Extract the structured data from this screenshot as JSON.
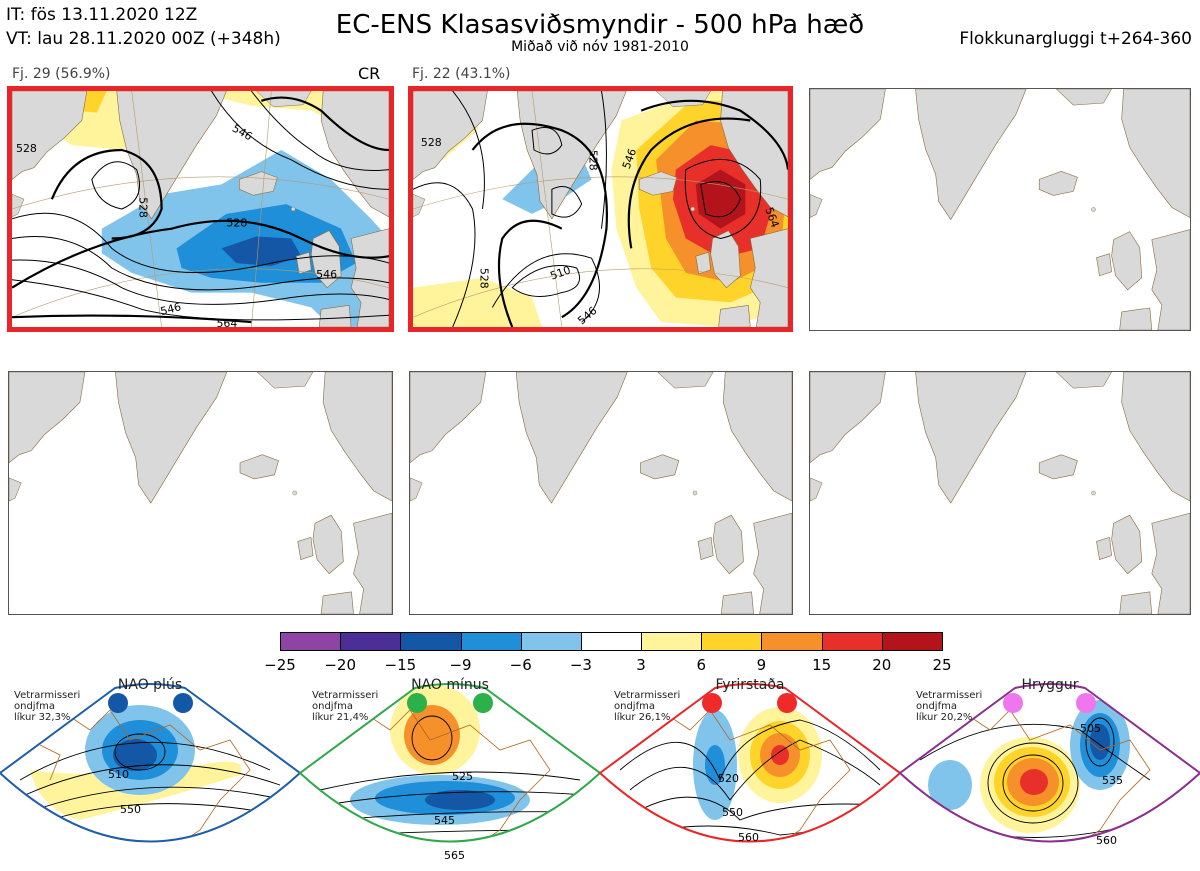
{
  "header": {
    "it_line": "IT: fös 13.11.2020 12Z",
    "vt_line": "VT: lau 28.11.2020 00Z  (+348h)",
    "title": "EC-ENS Klasasviðsmyndir - 500 hPa hæð",
    "subtitle": "Miðað við nóv 1981-2010",
    "window": "Flokkunargluggi t+264-360"
  },
  "panels": [
    {
      "label": "Fj. 29 (56.9%)",
      "tag": "CR",
      "highlighted": true,
      "contours": [
        {
          "text": "528"
        },
        {
          "text": "528"
        },
        {
          "text": "528"
        },
        {
          "text": "546"
        },
        {
          "text": "546"
        },
        {
          "text": "546"
        },
        {
          "text": "564"
        }
      ]
    },
    {
      "label": "Fj. 22 (43.1%)",
      "tag": "",
      "highlighted": true,
      "contours": [
        {
          "text": "528"
        },
        {
          "text": "528"
        },
        {
          "text": "528"
        },
        {
          "text": "510"
        },
        {
          "text": "546"
        },
        {
          "text": "564"
        },
        {
          "text": "546"
        }
      ]
    },
    {
      "label": "",
      "highlighted": false
    },
    {
      "label": "",
      "highlighted": false
    },
    {
      "label": "",
      "highlighted": false
    },
    {
      "label": "",
      "highlighted": false
    }
  ],
  "colorbar": {
    "ticks": [
      "−25",
      "−20",
      "−15",
      "−9",
      "−6",
      "−3",
      "3",
      "6",
      "9",
      "15",
      "20",
      "25"
    ],
    "colors": [
      "#8e44a5",
      "#4b2e96",
      "#1457a6",
      "#1e8fd8",
      "#80c4ec",
      "#ffffff",
      "#fff39b",
      "#ffd42a",
      "#f5902a",
      "#e8302a",
      "#b3141c"
    ]
  },
  "regimes": [
    {
      "name": "NAO plús",
      "caption": "Vetrarmisseri\nondjfma\nlíkur 32,3%",
      "color": "#1e5ea8",
      "dot_color": "#1457a6",
      "contours": [
        "510",
        "550"
      ]
    },
    {
      "name": "NAO mínus",
      "caption": "Vetrarmisseri\nondjfma\nlíkur 21,4%",
      "color": "#2ea84a",
      "dot_color": "#2bb04a",
      "contours": [
        "525",
        "545",
        "565"
      ]
    },
    {
      "name": "Fyrirstaða",
      "caption": "Vetrarmisseri\nondjfma\nlíkur 26,1%",
      "color": "#e8262a",
      "dot_color": "#ee2a2a",
      "contours": [
        "520",
        "550",
        "560"
      ]
    },
    {
      "name": "Hryggur",
      "caption": "Vetrarmisseri\nondjfma\nlíkur 20,2%",
      "color": "#8a2f8e",
      "dot_color": "#ee77ee",
      "contours": [
        "505",
        "535",
        "560"
      ]
    }
  ]
}
